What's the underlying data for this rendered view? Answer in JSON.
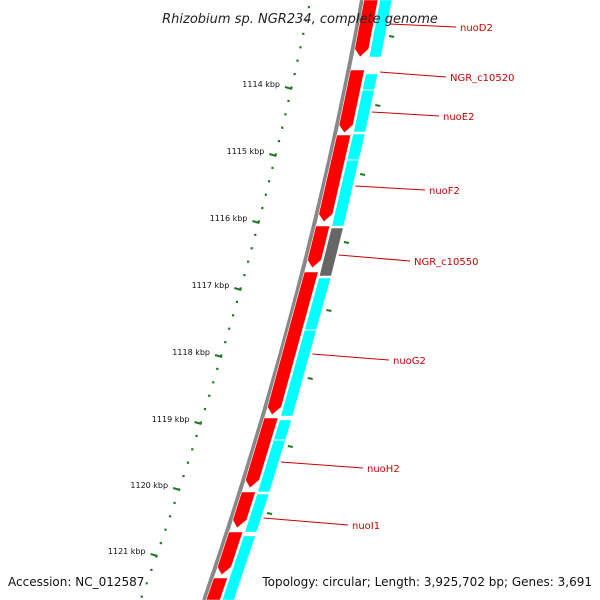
{
  "title": "Rhizobium sp. NGR234, complete genome",
  "ticks": [
    {
      "label": "1114 kbp"
    },
    {
      "label": "1115 kbp"
    },
    {
      "label": "1116 kbp"
    },
    {
      "label": "1117 kbp"
    },
    {
      "label": "1118 kbp"
    },
    {
      "label": "1119 kbp"
    },
    {
      "label": "1120 kbp"
    },
    {
      "label": "1121 kbp"
    }
  ],
  "genes": [
    {
      "label": "nuoD2"
    },
    {
      "label": "NGR_c10520"
    },
    {
      "label": "nuoE2"
    },
    {
      "label": "nuoF2"
    },
    {
      "label": "NGR_c10550"
    },
    {
      "label": "nuoG2"
    },
    {
      "label": "nuoH2"
    },
    {
      "label": "nuoI1"
    }
  ],
  "footer": {
    "accession": "Accession: NC_012587",
    "topology": "Topology: circular; Length: 3,925,702 bp; Genes: 3,691"
  },
  "colors": {
    "cds": "#ff0000",
    "feature": "#00ffff",
    "other": "#666666",
    "backbone": "#888888",
    "ticks": "#227722",
    "label_line": "#cc0000"
  }
}
